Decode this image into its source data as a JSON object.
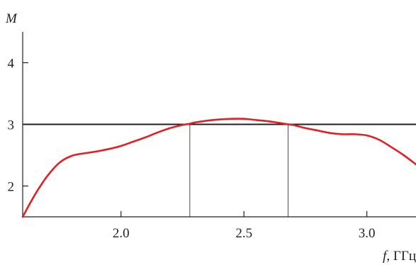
{
  "chart_data": {
    "type": "line",
    "xlabel_var": "f",
    "xlabel_unit": ", ГГц",
    "ylabel": "M",
    "xlim": [
      1.6,
      3.2
    ],
    "ylim": [
      1.5,
      4.5
    ],
    "x_ticks": [
      2.0,
      2.5,
      3.0
    ],
    "x_tick_labels": [
      "2.0",
      "2.5",
      "3.0"
    ],
    "y_ticks": [
      2,
      3,
      4
    ],
    "y_tick_labels": [
      "2",
      "3",
      "4"
    ],
    "grid": false,
    "series": [
      {
        "color": "#e31e24",
        "x": [
          1.6,
          1.65,
          1.7,
          1.75,
          1.8,
          1.85,
          1.9,
          1.95,
          2.0,
          2.05,
          2.1,
          2.15,
          2.2,
          2.25,
          2.28,
          2.3,
          2.35,
          2.4,
          2.45,
          2.5,
          2.55,
          2.6,
          2.65,
          2.68,
          2.7,
          2.75,
          2.8,
          2.85,
          2.9,
          2.95,
          3.0,
          3.05,
          3.1,
          3.15,
          3.2
        ],
        "y": [
          1.5,
          1.86,
          2.16,
          2.38,
          2.49,
          2.53,
          2.56,
          2.6,
          2.65,
          2.72,
          2.79,
          2.87,
          2.94,
          2.99,
          3.01,
          3.03,
          3.06,
          3.08,
          3.09,
          3.09,
          3.07,
          3.05,
          3.02,
          3.0,
          2.99,
          2.94,
          2.9,
          2.86,
          2.84,
          2.84,
          2.82,
          2.75,
          2.63,
          2.5,
          2.35
        ]
      }
    ],
    "reference_lines": [
      {
        "orientation": "horizontal",
        "y": 3,
        "color": "#231f20"
      },
      {
        "orientation": "vertical",
        "x": 2.28,
        "y_from": 1.5,
        "y_to": 3,
        "color": "#231f20"
      },
      {
        "orientation": "vertical",
        "x": 2.68,
        "y_from": 1.5,
        "y_to": 3,
        "color": "#231f20"
      }
    ]
  }
}
